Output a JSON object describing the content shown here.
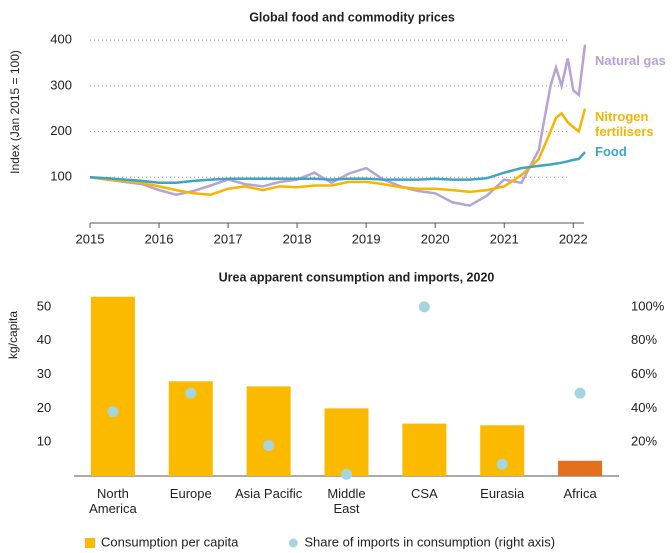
{
  "chart_data": [
    {
      "type": "line",
      "title": "Global food and commodity prices",
      "ylabel": "Index (Jan 2015 = 100)",
      "x": [
        2015,
        2015.25,
        2015.5,
        2015.75,
        2016,
        2016.25,
        2016.5,
        2016.75,
        2017,
        2017.25,
        2017.5,
        2017.75,
        2018,
        2018.25,
        2018.5,
        2018.75,
        2019,
        2019.25,
        2019.5,
        2019.75,
        2020,
        2020.25,
        2020.5,
        2020.75,
        2021,
        2021.25,
        2021.5,
        2021.67,
        2021.75,
        2021.83,
        2021.92,
        2022,
        2022.08,
        2022.17
      ],
      "xlim": [
        2015,
        2022.3
      ],
      "xticks": [
        2015,
        2016,
        2017,
        2018,
        2019,
        2020,
        2021,
        2022
      ],
      "ylim": [
        0,
        420
      ],
      "yticks": [
        100,
        200,
        300,
        400
      ],
      "grid": true,
      "series": [
        {
          "name": "Natural gas",
          "color": "#b7a2d6",
          "values": [
            100,
            95,
            90,
            85,
            72,
            62,
            70,
            82,
            95,
            85,
            80,
            90,
            95,
            110,
            88,
            108,
            120,
            95,
            80,
            70,
            65,
            45,
            38,
            60,
            95,
            88,
            160,
            300,
            340,
            300,
            360,
            290,
            280,
            390
          ]
        },
        {
          "name": "Nitrogen fertilisers",
          "color": "#f7b500",
          "values": [
            100,
            95,
            92,
            88,
            80,
            72,
            65,
            62,
            75,
            80,
            72,
            80,
            78,
            82,
            82,
            90,
            90,
            85,
            78,
            75,
            75,
            72,
            68,
            72,
            80,
            105,
            140,
            200,
            230,
            240,
            220,
            210,
            200,
            250
          ]
        },
        {
          "name": "Food",
          "color": "#3fa3c4",
          "values": [
            100,
            98,
            95,
            92,
            88,
            88,
            92,
            95,
            97,
            97,
            97,
            97,
            97,
            97,
            95,
            97,
            97,
            95,
            95,
            95,
            97,
            95,
            95,
            98,
            110,
            120,
            125,
            128,
            130,
            132,
            135,
            138,
            140,
            155
          ]
        }
      ]
    },
    {
      "type": "bar",
      "title": "Urea apparent consumption and imports, 2020",
      "ylabel": "kg/capita",
      "categories": [
        "North America",
        "Europe",
        "Asia Pacific",
        "Middle East",
        "CSA",
        "Eurasia",
        "Africa"
      ],
      "ylim": [
        0,
        55
      ],
      "yticks": [
        10,
        20,
        30,
        40,
        50
      ],
      "y2lim": [
        0,
        110
      ],
      "y2ticks": [
        {
          "value": 20,
          "label": "20%"
        },
        {
          "value": 40,
          "label": "40%"
        },
        {
          "value": 60,
          "label": "60%"
        },
        {
          "value": 80,
          "label": "80%"
        },
        {
          "value": 100,
          "label": "100%"
        }
      ],
      "legend": "bottom",
      "series": [
        {
          "name": "Consumption per capita",
          "type": "bar",
          "colors": [
            "#fbb900",
            "#fbb900",
            "#fbb900",
            "#fbb900",
            "#fbb900",
            "#fbb900",
            "#e2701f"
          ],
          "values": [
            53,
            28,
            26.5,
            20,
            15.5,
            15,
            4.5
          ]
        },
        {
          "name": "Share of imports in consumption (right axis)",
          "type": "scatter",
          "axis": "y2",
          "color": "#a5d5e0",
          "values": [
            38,
            49,
            18,
            1,
            100,
            7,
            49
          ]
        }
      ]
    }
  ]
}
